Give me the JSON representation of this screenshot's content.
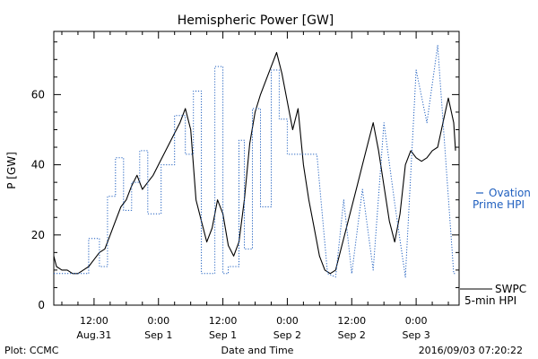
{
  "chart_data": {
    "type": "line",
    "title": "Hemispheric Power [GW]",
    "ylabel": "P [GW]",
    "xlabel": "Date and Time",
    "ylim": [
      0,
      78
    ],
    "yticks": [
      0,
      20,
      40,
      60
    ],
    "grid": false,
    "xticks": [
      {
        "t": "2016-08-31 12:00",
        "line1": "12:00",
        "line2": "Aug.31"
      },
      {
        "t": "2016-09-01 00:00",
        "line1": "0:00",
        "line2": "Sep 1"
      },
      {
        "t": "2016-09-01 12:00",
        "line1": "12:00",
        "line2": "Sep 1"
      },
      {
        "t": "2016-09-02 00:00",
        "line1": "0:00",
        "line2": "Sep 2"
      },
      {
        "t": "2016-09-02 12:00",
        "line1": "12:00",
        "line2": "Sep 2"
      },
      {
        "t": "2016-09-03 00:00",
        "line1": "0:00",
        "line2": "Sep 3"
      }
    ],
    "xlim": [
      "2016-08-31 04:30",
      "2016-09-03 08:00"
    ],
    "legend_placement": "right",
    "series": [
      {
        "name": "SWPC 5-min HPI",
        "legend_lines": [
          "SWPC",
          "5-min HPI"
        ],
        "color": "#000000",
        "style": "solid",
        "x": [
          "2016-08-31 04:30",
          "2016-08-31 05:00",
          "2016-08-31 06:00",
          "2016-08-31 07:00",
          "2016-08-31 08:00",
          "2016-08-31 09:00",
          "2016-08-31 10:00",
          "2016-08-31 11:00",
          "2016-08-31 12:00",
          "2016-08-31 13:00",
          "2016-08-31 14:00",
          "2016-08-31 15:00",
          "2016-08-31 16:00",
          "2016-08-31 17:00",
          "2016-08-31 18:00",
          "2016-08-31 19:00",
          "2016-08-31 20:00",
          "2016-08-31 21:00",
          "2016-08-31 22:00",
          "2016-08-31 23:00",
          "2016-09-01 00:00",
          "2016-09-01 01:00",
          "2016-09-01 02:00",
          "2016-09-01 03:00",
          "2016-09-01 04:00",
          "2016-09-01 05:00",
          "2016-09-01 06:00",
          "2016-09-01 07:00",
          "2016-09-01 08:00",
          "2016-09-01 09:00",
          "2016-09-01 10:00",
          "2016-09-01 11:00",
          "2016-09-01 12:00",
          "2016-09-01 13:00",
          "2016-09-01 14:00",
          "2016-09-01 15:00",
          "2016-09-01 16:00",
          "2016-09-01 17:00",
          "2016-09-01 18:00",
          "2016-09-01 19:00",
          "2016-09-01 20:00",
          "2016-09-01 21:00",
          "2016-09-01 22:00",
          "2016-09-01 23:00",
          "2016-09-02 00:00",
          "2016-09-02 01:00",
          "2016-09-02 02:00",
          "2016-09-02 03:00",
          "2016-09-02 04:00",
          "2016-09-02 05:00",
          "2016-09-02 06:00",
          "2016-09-02 07:00",
          "2016-09-02 08:00",
          "2016-09-02 09:00",
          "2016-09-02 10:00",
          "2016-09-02 11:00",
          "2016-09-02 12:00",
          "2016-09-02 13:00",
          "2016-09-02 14:00",
          "2016-09-02 15:00",
          "2016-09-02 16:00",
          "2016-09-02 17:00",
          "2016-09-02 18:00",
          "2016-09-02 19:00",
          "2016-09-02 20:00",
          "2016-09-02 21:00",
          "2016-09-02 22:00",
          "2016-09-02 23:00",
          "2016-09-03 00:00",
          "2016-09-03 01:00",
          "2016-09-03 02:00",
          "2016-09-03 03:00",
          "2016-09-03 04:00",
          "2016-09-03 05:00",
          "2016-09-03 06:00",
          "2016-09-03 07:00",
          "2016-09-03 07:20"
        ],
        "y": [
          14,
          11,
          10,
          10,
          9,
          9,
          10,
          11,
          13,
          15,
          16,
          20,
          24,
          28,
          30,
          34,
          37,
          33,
          35,
          37,
          40,
          43,
          46,
          49,
          52,
          56,
          50,
          30,
          24,
          18,
          22,
          30,
          26,
          17,
          14,
          18,
          30,
          46,
          55,
          60,
          64,
          68,
          72,
          66,
          58,
          50,
          56,
          40,
          30,
          22,
          14,
          10,
          9,
          10,
          16,
          22,
          28,
          34,
          40,
          46,
          52,
          44,
          34,
          24,
          18,
          26,
          40,
          44,
          42,
          41,
          42,
          44,
          45,
          52,
          59,
          52,
          44
        ]
      },
      {
        "name": "Ovation Prime HPI",
        "legend_lines": [
          "Ovation",
          "Prime HPI"
        ],
        "color": "#1f5fbf",
        "style": "dotted",
        "x": [
          "2016-08-31 04:30",
          "2016-08-31 11:00",
          "2016-08-31 11:00",
          "2016-08-31 13:00",
          "2016-08-31 13:00",
          "2016-08-31 14:30",
          "2016-08-31 14:30",
          "2016-08-31 16:00",
          "2016-08-31 16:00",
          "2016-08-31 17:30",
          "2016-08-31 17:30",
          "2016-08-31 19:00",
          "2016-08-31 19:00",
          "2016-08-31 20:30",
          "2016-08-31 20:30",
          "2016-08-31 22:00",
          "2016-08-31 22:00",
          "2016-09-01 00:30",
          "2016-09-01 00:30",
          "2016-09-01 03:00",
          "2016-09-01 03:00",
          "2016-09-01 05:00",
          "2016-09-01 05:00",
          "2016-09-01 06:30",
          "2016-09-01 06:30",
          "2016-09-01 08:00",
          "2016-09-01 08:00",
          "2016-09-01 10:30",
          "2016-09-01 10:30",
          "2016-09-01 12:00",
          "2016-09-01 12:00",
          "2016-09-01 13:00",
          "2016-09-01 13:00",
          "2016-09-01 15:00",
          "2016-09-01 15:00",
          "2016-09-01 16:00",
          "2016-09-01 16:00",
          "2016-09-01 17:30",
          "2016-09-01 17:30",
          "2016-09-01 19:00",
          "2016-09-01 19:00",
          "2016-09-01 21:00",
          "2016-09-01 21:00",
          "2016-09-01 22:30",
          "2016-09-01 22:30",
          "2016-09-02 00:00",
          "2016-09-02 00:00",
          "2016-09-02 02:00",
          "2016-09-02 05:30",
          "2016-09-02 05:30",
          "2016-09-02 07:30",
          "2016-09-02 07:30",
          "2016-09-02 09:00",
          "2016-09-02 09:00",
          "2016-09-02 10:30",
          "2016-09-02 10:30",
          "2016-09-02 12:00",
          "2016-09-02 12:00",
          "2016-09-02 14:00",
          "2016-09-02 14:00",
          "2016-09-02 16:00",
          "2016-09-02 16:00",
          "2016-09-02 18:00",
          "2016-09-02 18:00",
          "2016-09-02 20:00",
          "2016-09-02 20:00",
          "2016-09-02 22:00",
          "2016-09-02 22:00",
          "2016-09-03 00:00",
          "2016-09-03 00:00",
          "2016-09-03 02:00",
          "2016-09-03 02:00",
          "2016-09-03 04:00",
          "2016-09-03 07:00",
          "2016-09-03 07:00",
          "2016-09-03 07:20"
        ],
        "y": [
          9,
          9,
          19,
          19,
          11,
          11,
          31,
          31,
          42,
          42,
          27,
          27,
          35,
          35,
          44,
          44,
          26,
          26,
          40,
          40,
          54,
          54,
          43,
          43,
          61,
          61,
          9,
          9,
          68,
          68,
          9,
          9,
          11,
          11,
          47,
          47,
          16,
          16,
          56,
          56,
          28,
          28,
          67,
          67,
          53,
          53,
          43,
          43,
          43,
          43,
          9,
          9,
          8,
          8,
          30,
          30,
          9,
          9,
          33,
          33,
          10,
          10,
          52,
          52,
          29,
          29,
          8,
          8,
          67,
          67,
          52,
          52,
          74,
          9,
          9,
          9
        ]
      }
    ]
  },
  "footer": {
    "plot_source": "Plot: CCMC",
    "timestamp": "2016/09/03 07:20:22"
  }
}
